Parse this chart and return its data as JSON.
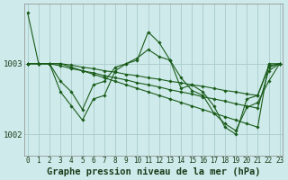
{
  "title": "Graphe pression niveau de la mer (hPa)",
  "bg_color": "#ceeaea",
  "grid_color": "#aacccc",
  "line_color": "#1a5c1a",
  "marker_color": "#1a5c1a",
  "ylim": [
    1001.7,
    1003.85
  ],
  "yticks": [
    1002,
    1003
  ],
  "xlim": [
    -0.3,
    23.3
  ],
  "xticks": [
    0,
    1,
    2,
    3,
    4,
    5,
    6,
    7,
    8,
    9,
    10,
    11,
    12,
    13,
    14,
    15,
    16,
    17,
    18,
    19,
    20,
    21,
    22,
    23
  ],
  "series": [
    [
      1003.72,
      1003.0,
      1003.0,
      1003.0,
      1002.95,
      1002.9,
      1002.85,
      1002.8,
      1002.75,
      1002.7,
      1002.65,
      1002.6,
      1002.55,
      1002.5,
      1002.45,
      1002.4,
      1002.35,
      1002.3,
      1002.25,
      1002.2,
      1002.15,
      1002.1,
      1003.0,
      1003.0
    ],
    [
      1003.0,
      1003.0,
      1003.0,
      1003.0,
      1002.98,
      1002.95,
      1002.93,
      1002.9,
      1002.88,
      1002.85,
      1002.83,
      1002.8,
      1002.78,
      1002.75,
      1002.73,
      1002.7,
      1002.68,
      1002.65,
      1002.62,
      1002.6,
      1002.57,
      1002.55,
      1002.97,
      1003.0
    ],
    [
      1003.0,
      1003.0,
      1003.0,
      1002.97,
      1002.93,
      1002.9,
      1002.87,
      1002.83,
      1002.8,
      1002.77,
      1002.73,
      1002.7,
      1002.67,
      1002.63,
      1002.6,
      1002.57,
      1002.53,
      1002.5,
      1002.47,
      1002.43,
      1002.4,
      1002.37,
      1002.9,
      1003.0
    ],
    [
      1003.0,
      1003.0,
      1003.0,
      1002.6,
      1002.4,
      1002.2,
      1002.5,
      1002.55,
      1002.9,
      1003.0,
      1003.05,
      1003.45,
      1003.3,
      1003.05,
      1002.65,
      1002.7,
      1002.6,
      1002.4,
      1002.1,
      1002.0,
      1002.5,
      1002.55,
      1002.95,
      1003.0
    ],
    [
      1003.0,
      1003.0,
      1003.0,
      1002.75,
      1002.6,
      1002.35,
      1002.7,
      1002.75,
      1002.95,
      1003.0,
      1003.08,
      1003.2,
      1003.1,
      1003.05,
      1002.8,
      1002.62,
      1002.55,
      1002.3,
      1002.15,
      1002.05,
      1002.38,
      1002.45,
      1002.75,
      1003.0
    ]
  ],
  "xlabel_fontsize": 5.5,
  "ylabel_fontsize": 6.5,
  "title_fontsize": 7.5
}
